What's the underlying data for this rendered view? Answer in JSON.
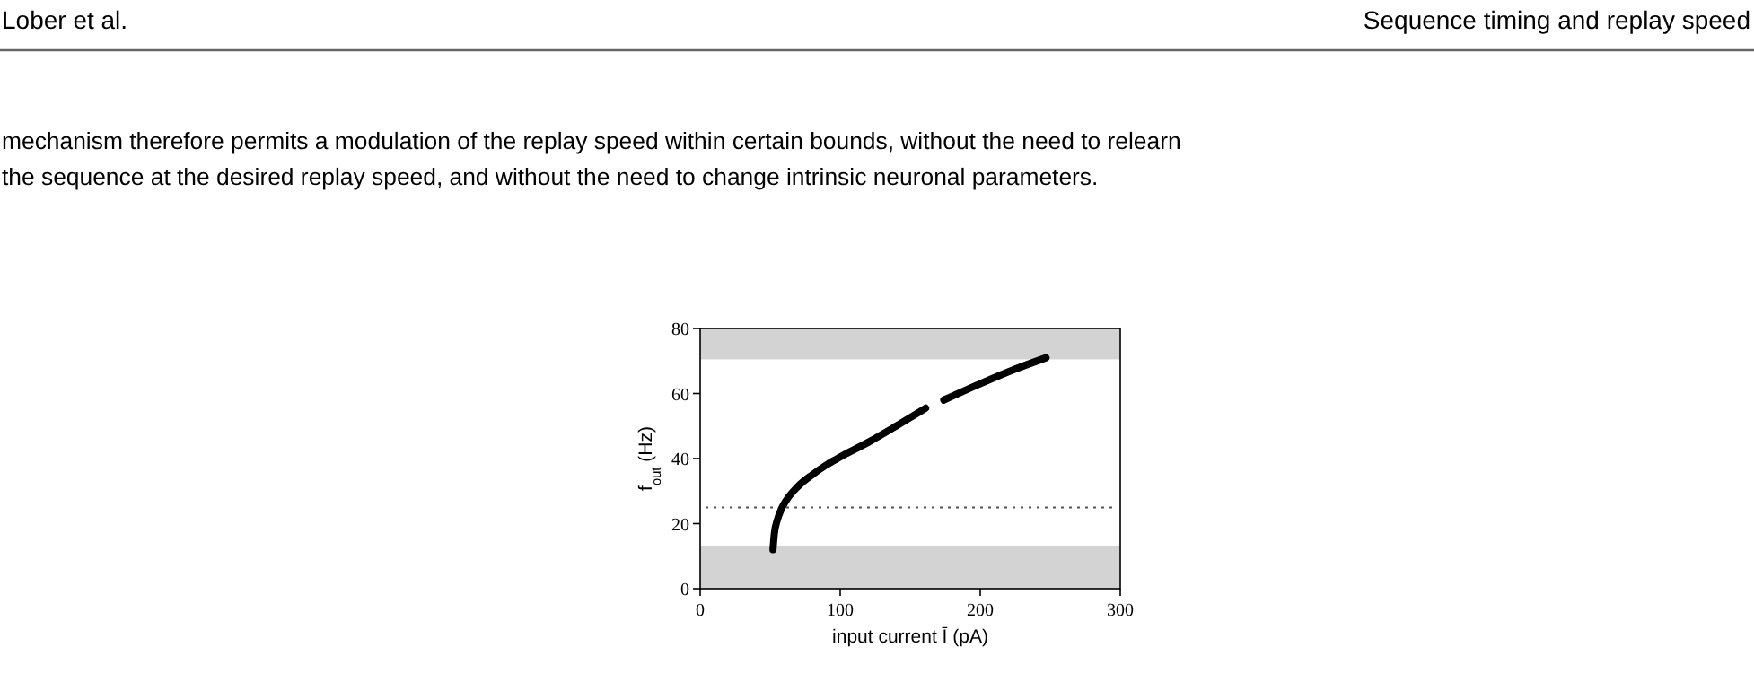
{
  "chart_data": {
    "type": "line",
    "xlabel": "input current Ī (pA)",
    "ylabel": "f$_{out}$ (Hz)",
    "annotations": [
      "Lober et al.",
      "Sequence timing and replay speed",
      "mechanism therefore permits a modulation of the replay speed within certain bounds, without the need to relearn",
      "the sequence at the desired replay speed, and without the need to change intrinsic neuronal parameters."
    ],
    "series": [
      {
        "color": "#000000",
        "x": [
          52,
          53,
          55,
          58,
          62,
          70,
          80,
          90,
          100,
          120,
          140,
          161,
          167,
          174,
          200,
          225,
          247
        ],
        "values": [
          12,
          17,
          21,
          24.5,
          27.5,
          31.5,
          35,
          38,
          40.5,
          45,
          50,
          55.5,
          null,
          58,
          63,
          67.5,
          71
        ]
      }
    ],
    "xlim": [
      0,
      300
    ],
    "xticks": [
      0,
      100,
      200,
      300
    ],
    "ylim": [
      0,
      80
    ],
    "yticks": [
      0,
      20,
      40,
      60,
      80
    ],
    "ref_lines": [
      {
        "axis": "y",
        "value": 25,
        "color": "#555555",
        "line_style": "dotted"
      }
    ],
    "bands": [
      {
        "axis": "y",
        "from": 0,
        "to": 13,
        "color": "#d3d3d3"
      },
      {
        "axis": "y",
        "from": 70.5,
        "to": 80,
        "color": "#d3d3d3"
      }
    ],
    "grid": false,
    "marker": "none",
    "line_style": "solid"
  }
}
